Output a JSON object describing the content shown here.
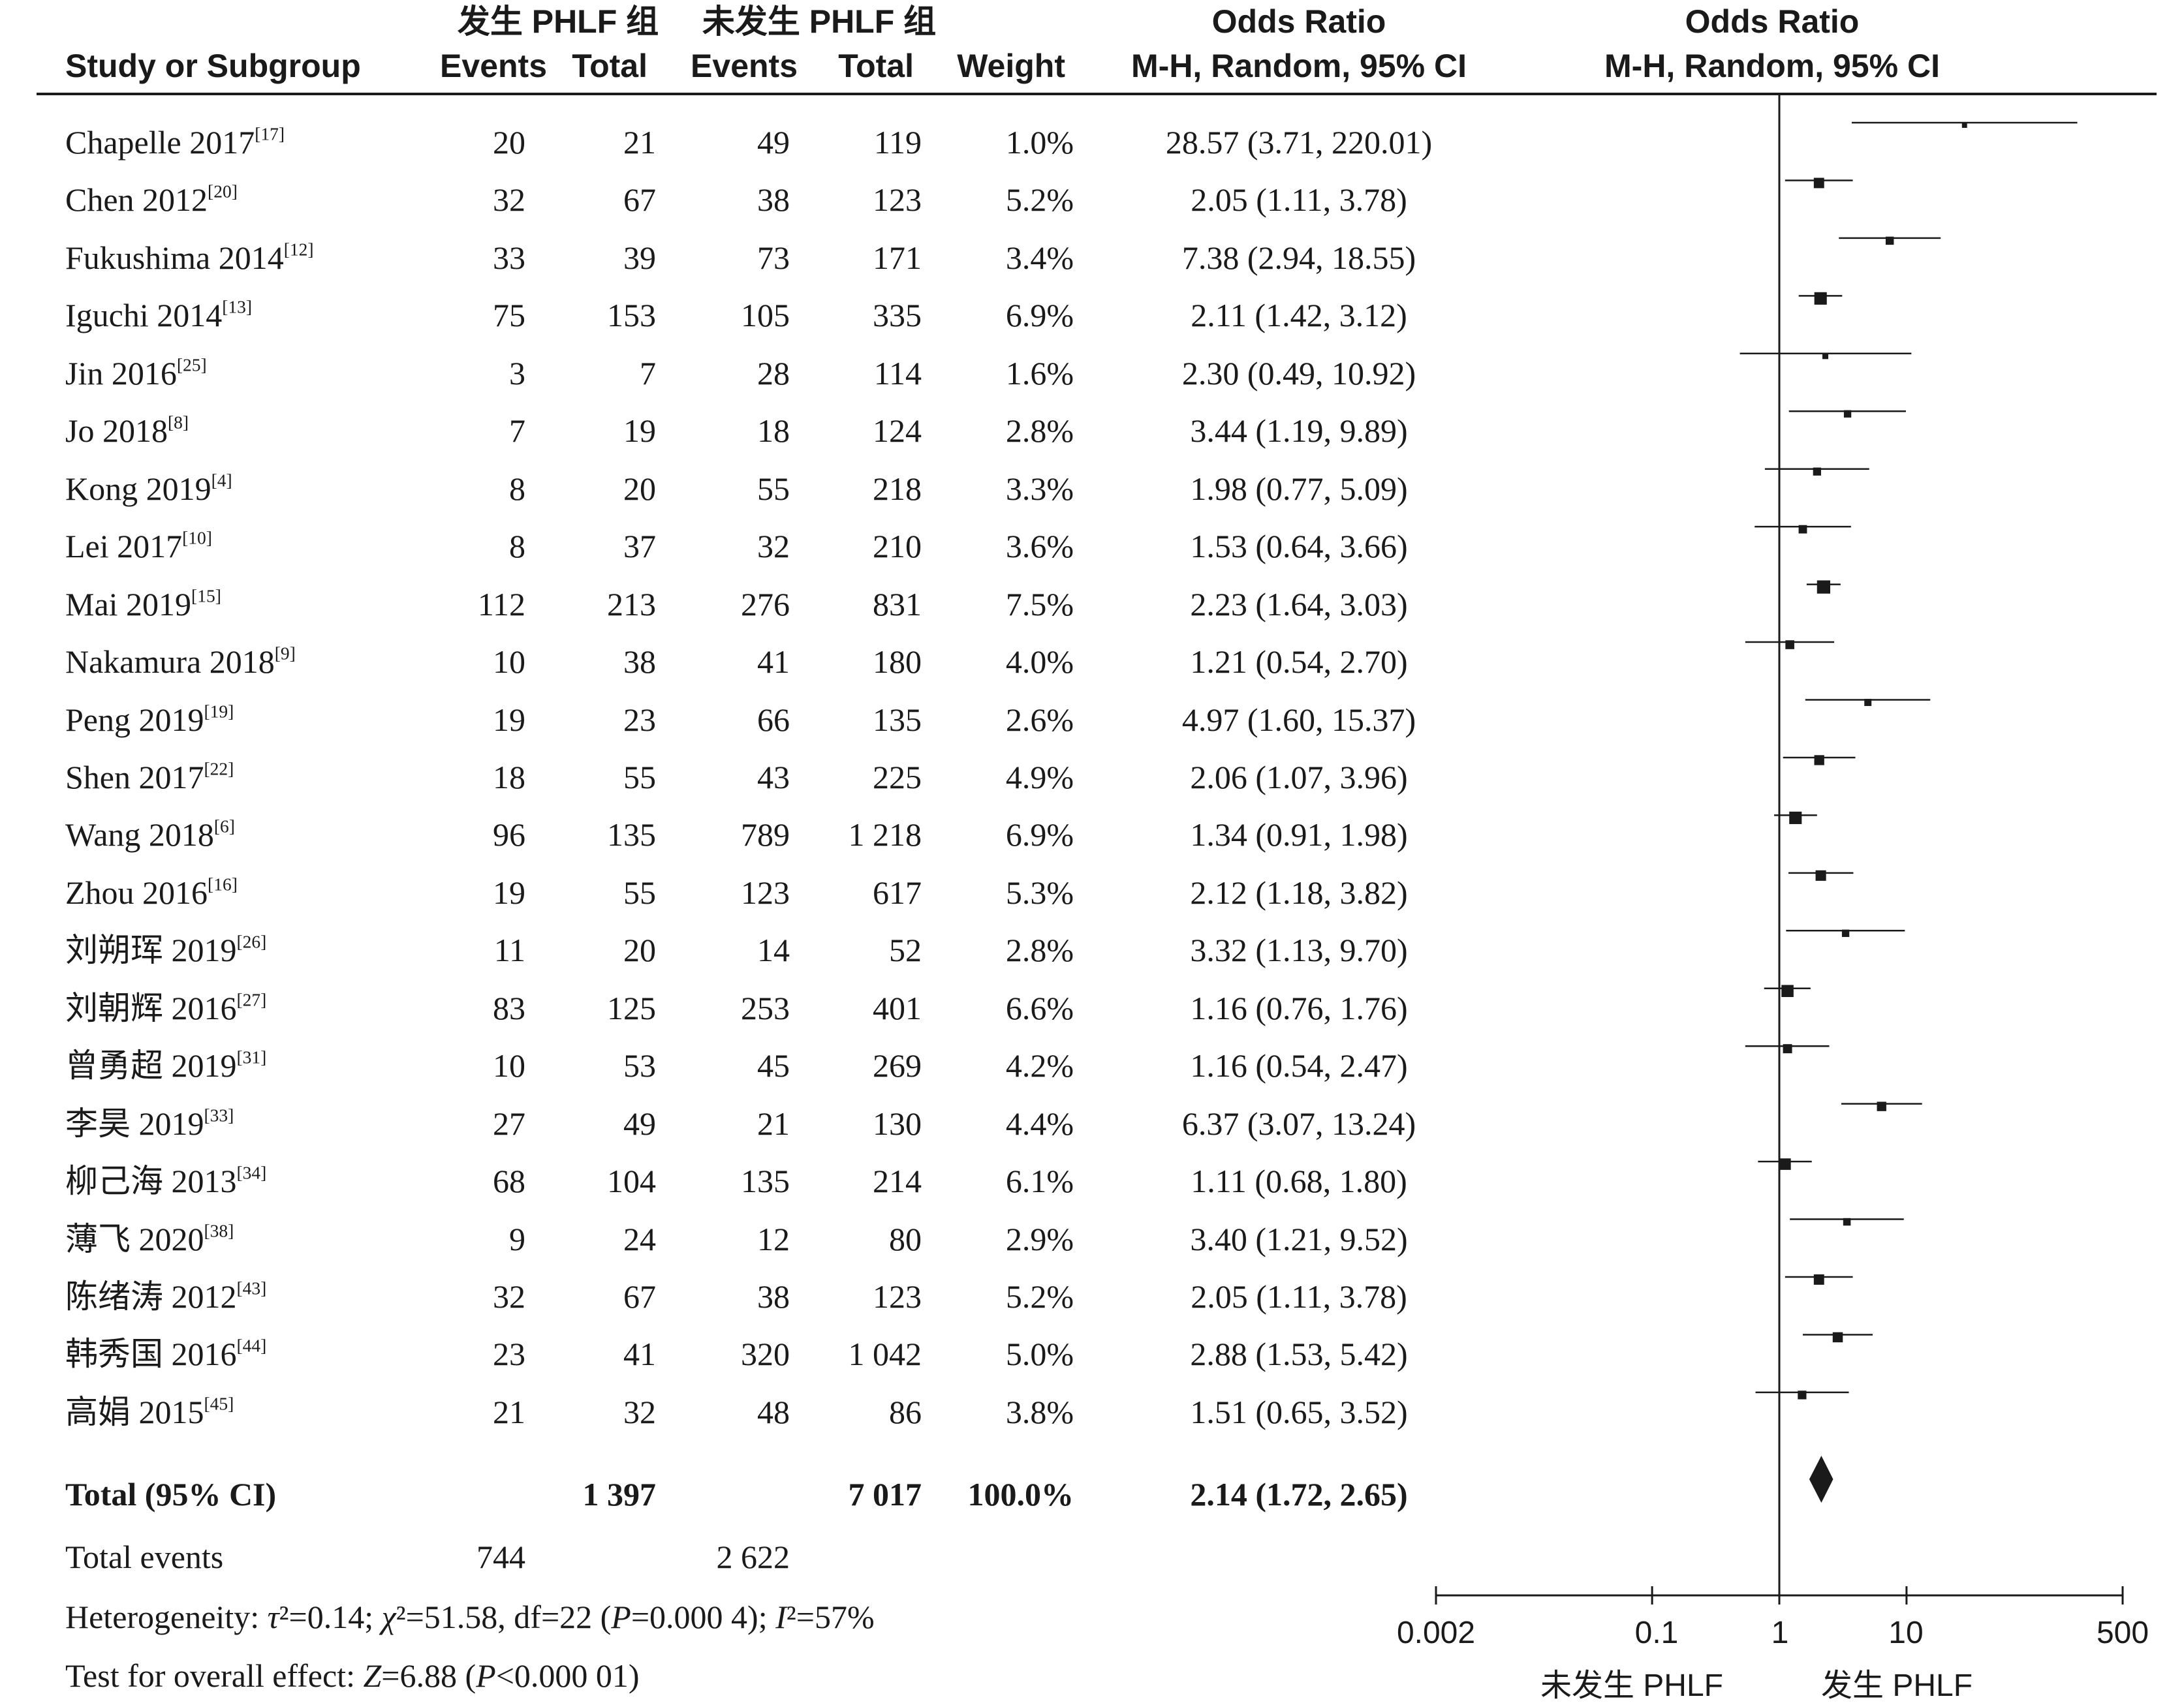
{
  "header": {
    "group1_title": "发生 PHLF 组",
    "group2_title": "未发生 PHLF 组",
    "study_col": "Study or Subgroup",
    "events": "Events",
    "total": "Total",
    "weight": "Weight",
    "or_title": "Odds Ratio",
    "or_method": "M-H, Random, 95% CI",
    "plot_title": "Odds Ratio",
    "plot_method": "M-H, Random, 95% CI"
  },
  "studies": [
    {
      "name": "Chapelle 2017",
      "ref": "[17]",
      "e1": "20",
      "t1": "21",
      "e2": "49",
      "t2": "119",
      "weight": "1.0%",
      "ci_text": "28.57 (3.71, 220.01)"
    },
    {
      "name": "Chen 2012",
      "ref": "[20]",
      "e1": "32",
      "t1": "67",
      "e2": "38",
      "t2": "123",
      "weight": "5.2%",
      "ci_text": "2.05 (1.11, 3.78)"
    },
    {
      "name": "Fukushima 2014",
      "ref": "[12]",
      "e1": "33",
      "t1": "39",
      "e2": "73",
      "t2": "171",
      "weight": "3.4%",
      "ci_text": "7.38 (2.94, 18.55)"
    },
    {
      "name": "Iguchi 2014",
      "ref": "[13]",
      "e1": "75",
      "t1": "153",
      "e2": "105",
      "t2": "335",
      "weight": "6.9%",
      "ci_text": "2.11 (1.42, 3.12)"
    },
    {
      "name": "Jin 2016",
      "ref": "[25]",
      "e1": "3",
      "t1": "7",
      "e2": "28",
      "t2": "114",
      "weight": "1.6%",
      "ci_text": "2.30 (0.49, 10.92)"
    },
    {
      "name": "Jo 2018",
      "ref": "[8]",
      "e1": "7",
      "t1": "19",
      "e2": "18",
      "t2": "124",
      "weight": "2.8%",
      "ci_text": "3.44 (1.19, 9.89)"
    },
    {
      "name": "Kong 2019",
      "ref": "[4]",
      "e1": "8",
      "t1": "20",
      "e2": "55",
      "t2": "218",
      "weight": "3.3%",
      "ci_text": "1.98 (0.77, 5.09)"
    },
    {
      "name": "Lei 2017",
      "ref": "[10]",
      "e1": "8",
      "t1": "37",
      "e2": "32",
      "t2": "210",
      "weight": "3.6%",
      "ci_text": "1.53 (0.64, 3.66)"
    },
    {
      "name": "Mai 2019",
      "ref": "[15]",
      "e1": "112",
      "t1": "213",
      "e2": "276",
      "t2": "831",
      "weight": "7.5%",
      "ci_text": "2.23 (1.64, 3.03)"
    },
    {
      "name": "Nakamura 2018",
      "ref": "[9]",
      "e1": "10",
      "t1": "38",
      "e2": "41",
      "t2": "180",
      "weight": "4.0%",
      "ci_text": "1.21 (0.54, 2.70)"
    },
    {
      "name": "Peng 2019",
      "ref": "[19]",
      "e1": "19",
      "t1": "23",
      "e2": "66",
      "t2": "135",
      "weight": "2.6%",
      "ci_text": "4.97 (1.60, 15.37)"
    },
    {
      "name": "Shen 2017",
      "ref": "[22]",
      "e1": "18",
      "t1": "55",
      "e2": "43",
      "t2": "225",
      "weight": "4.9%",
      "ci_text": "2.06 (1.07, 3.96)"
    },
    {
      "name": "Wang 2018",
      "ref": "[6]",
      "e1": "96",
      "t1": "135",
      "e2": "789",
      "t2": "1 218",
      "weight": "6.9%",
      "ci_text": "1.34 (0.91, 1.98)"
    },
    {
      "name": "Zhou 2016",
      "ref": "[16]",
      "e1": "19",
      "t1": "55",
      "e2": "123",
      "t2": "617",
      "weight": "5.3%",
      "ci_text": "2.12 (1.18, 3.82)"
    },
    {
      "name": "刘朔珲 2019",
      "ref": "[26]",
      "e1": "11",
      "t1": "20",
      "e2": "14",
      "t2": "52",
      "weight": "2.8%",
      "ci_text": "3.32 (1.13, 9.70)"
    },
    {
      "name": "刘朝辉 2016",
      "ref": "[27]",
      "e1": "83",
      "t1": "125",
      "e2": "253",
      "t2": "401",
      "weight": "6.6%",
      "ci_text": "1.16 (0.76, 1.76)"
    },
    {
      "name": "曾勇超 2019",
      "ref": "[31]",
      "e1": "10",
      "t1": "53",
      "e2": "45",
      "t2": "269",
      "weight": "4.2%",
      "ci_text": "1.16 (0.54, 2.47)"
    },
    {
      "name": "李昊 2019",
      "ref": "[33]",
      "e1": "27",
      "t1": "49",
      "e2": "21",
      "t2": "130",
      "weight": "4.4%",
      "ci_text": "6.37 (3.07, 13.24)"
    },
    {
      "name": "柳己海 2013",
      "ref": "[34]",
      "e1": "68",
      "t1": "104",
      "e2": "135",
      "t2": "214",
      "weight": "6.1%",
      "ci_text": "1.11 (0.68, 1.80)"
    },
    {
      "name": "薄飞 2020",
      "ref": "[38]",
      "e1": "9",
      "t1": "24",
      "e2": "12",
      "t2": "80",
      "weight": "2.9%",
      "ci_text": "3.40 (1.21, 9.52)"
    },
    {
      "name": "陈绪涛 2012",
      "ref": "[43]",
      "e1": "32",
      "t1": "67",
      "e2": "38",
      "t2": "123",
      "weight": "5.2%",
      "ci_text": "2.05 (1.11, 3.78)"
    },
    {
      "name": "韩秀国 2016",
      "ref": "[44]",
      "e1": "23",
      "t1": "41",
      "e2": "320",
      "t2": "1 042",
      "weight": "5.0%",
      "ci_text": "2.88 (1.53, 5.42)"
    },
    {
      "name": "高娟 2015",
      "ref": "[45]",
      "e1": "21",
      "t1": "32",
      "e2": "48",
      "t2": "86",
      "weight": "3.8%",
      "ci_text": "1.51 (0.65, 3.52)"
    }
  ],
  "total": {
    "label": "Total (95% CI)",
    "t1": "1 397",
    "t2": "7 017",
    "weight": "100.0%",
    "ci_text": "2.14 (1.72, 2.65)",
    "events_label": "Total events",
    "e1": "744",
    "e2": "2 622"
  },
  "footer": {
    "heterogeneity": "Heterogeneity: τ²=0.14; χ²=51.58, df=22 (P=0.000 4); I²=57%",
    "overall_effect": "Test for overall effect: Z=6.88 (P<0.000 01)"
  },
  "axis": {
    "ticks": [
      "0.002",
      "0.1",
      "1",
      "10",
      "500"
    ],
    "favours_left": "未发生 PHLF",
    "favours_right": "发生 PHLF"
  },
  "colors": {
    "ink": "#1a1a1a"
  },
  "chart_data": {
    "type": "forest",
    "scale": "log",
    "xlim": [
      0.002,
      500
    ],
    "tick_values": [
      0.002,
      0.1,
      1,
      10,
      500
    ],
    "null_line": 1,
    "studies": [
      {
        "label": "Chapelle 2017",
        "or": 28.57,
        "lo": 3.71,
        "hi": 220.01,
        "weight": 1.0
      },
      {
        "label": "Chen 2012",
        "or": 2.05,
        "lo": 1.11,
        "hi": 3.78,
        "weight": 5.2
      },
      {
        "label": "Fukushima 2014",
        "or": 7.38,
        "lo": 2.94,
        "hi": 18.55,
        "weight": 3.4
      },
      {
        "label": "Iguchi 2014",
        "or": 2.11,
        "lo": 1.42,
        "hi": 3.12,
        "weight": 6.9
      },
      {
        "label": "Jin 2016",
        "or": 2.3,
        "lo": 0.49,
        "hi": 10.92,
        "weight": 1.6
      },
      {
        "label": "Jo 2018",
        "or": 3.44,
        "lo": 1.19,
        "hi": 9.89,
        "weight": 2.8
      },
      {
        "label": "Kong 2019",
        "or": 1.98,
        "lo": 0.77,
        "hi": 5.09,
        "weight": 3.3
      },
      {
        "label": "Lei 2017",
        "or": 1.53,
        "lo": 0.64,
        "hi": 3.66,
        "weight": 3.6
      },
      {
        "label": "Mai 2019",
        "or": 2.23,
        "lo": 1.64,
        "hi": 3.03,
        "weight": 7.5
      },
      {
        "label": "Nakamura 2018",
        "or": 1.21,
        "lo": 0.54,
        "hi": 2.7,
        "weight": 4.0
      },
      {
        "label": "Peng 2019",
        "or": 4.97,
        "lo": 1.6,
        "hi": 15.37,
        "weight": 2.6
      },
      {
        "label": "Shen 2017",
        "or": 2.06,
        "lo": 1.07,
        "hi": 3.96,
        "weight": 4.9
      },
      {
        "label": "Wang 2018",
        "or": 1.34,
        "lo": 0.91,
        "hi": 1.98,
        "weight": 6.9
      },
      {
        "label": "Zhou 2016",
        "or": 2.12,
        "lo": 1.18,
        "hi": 3.82,
        "weight": 5.3
      },
      {
        "label": "刘朔珲 2019",
        "or": 3.32,
        "lo": 1.13,
        "hi": 9.7,
        "weight": 2.8
      },
      {
        "label": "刘朝辉 2016",
        "or": 1.16,
        "lo": 0.76,
        "hi": 1.76,
        "weight": 6.6
      },
      {
        "label": "曾勇超 2019",
        "or": 1.16,
        "lo": 0.54,
        "hi": 2.47,
        "weight": 4.2
      },
      {
        "label": "李昊 2019",
        "or": 6.37,
        "lo": 3.07,
        "hi": 13.24,
        "weight": 4.4
      },
      {
        "label": "柳己海 2013",
        "or": 1.11,
        "lo": 0.68,
        "hi": 1.8,
        "weight": 6.1
      },
      {
        "label": "薄飞 2020",
        "or": 3.4,
        "lo": 1.21,
        "hi": 9.52,
        "weight": 2.9
      },
      {
        "label": "陈绪涛 2012",
        "or": 2.05,
        "lo": 1.11,
        "hi": 3.78,
        "weight": 5.2
      },
      {
        "label": "韩秀国 2016",
        "or": 2.88,
        "lo": 1.53,
        "hi": 5.42,
        "weight": 5.0
      },
      {
        "label": "高娟 2015",
        "or": 1.51,
        "lo": 0.65,
        "hi": 3.52,
        "weight": 3.8
      }
    ],
    "pooled": {
      "label": "Total (95% CI)",
      "or": 2.14,
      "lo": 1.72,
      "hi": 2.65
    }
  }
}
